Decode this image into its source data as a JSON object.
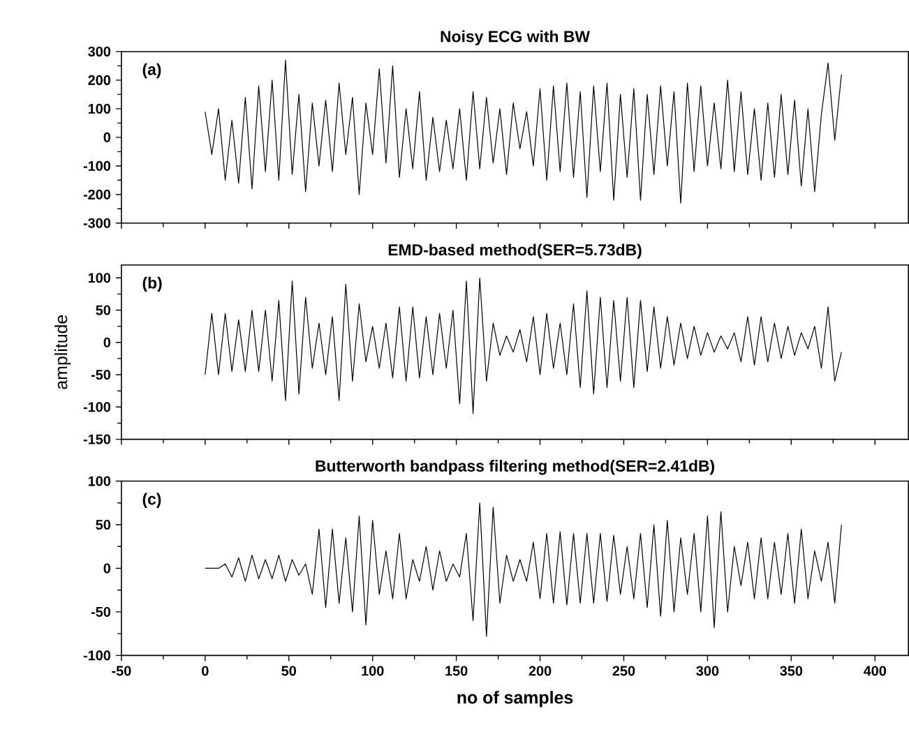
{
  "chart_data": [
    {
      "type": "line",
      "title": "Noisy ECG with BW",
      "annotations": [
        "(a)"
      ],
      "color": "#000000",
      "tick_labels": "y",
      "xlim": [
        -50,
        420
      ],
      "ylim": [
        -300,
        300
      ],
      "xticks": [
        -50,
        0,
        50,
        100,
        150,
        200,
        250,
        300,
        350,
        400
      ],
      "yticks": [
        -300,
        -200,
        -100,
        0,
        100,
        200,
        300
      ],
      "x": [
        0,
        4,
        8,
        12,
        16,
        20,
        24,
        28,
        32,
        36,
        40,
        44,
        48,
        52,
        56,
        60,
        64,
        68,
        72,
        76,
        80,
        84,
        88,
        92,
        96,
        100,
        104,
        108,
        112,
        116,
        120,
        124,
        128,
        132,
        136,
        140,
        144,
        148,
        152,
        156,
        160,
        164,
        168,
        172,
        176,
        180,
        184,
        188,
        192,
        196,
        200,
        204,
        208,
        212,
        216,
        220,
        224,
        228,
        232,
        236,
        240,
        244,
        248,
        252,
        256,
        260,
        264,
        268,
        272,
        276,
        280,
        284,
        288,
        292,
        296,
        300,
        304,
        308,
        312,
        316,
        320,
        324,
        328,
        332,
        336,
        340,
        344,
        348,
        352,
        356,
        360,
        364,
        368,
        372,
        376,
        380
      ],
      "values": [
        90,
        -60,
        100,
        -150,
        60,
        -160,
        140,
        -180,
        180,
        -120,
        200,
        -150,
        270,
        -130,
        150,
        -190,
        120,
        -100,
        130,
        -120,
        190,
        -60,
        140,
        -200,
        120,
        -60,
        240,
        -90,
        250,
        -140,
        100,
        -110,
        160,
        -150,
        70,
        -120,
        60,
        -110,
        100,
        -150,
        160,
        -110,
        140,
        -90,
        100,
        -130,
        120,
        -40,
        90,
        -100,
        170,
        -150,
        180,
        -120,
        190,
        -140,
        160,
        -210,
        180,
        -120,
        190,
        -220,
        150,
        -140,
        170,
        -220,
        150,
        -130,
        180,
        -100,
        160,
        -230,
        190,
        -120,
        180,
        -100,
        120,
        -110,
        200,
        -120,
        160,
        -130,
        100,
        -150,
        120,
        -140,
        150,
        -130,
        130,
        -170,
        100,
        -190,
        80,
        260,
        -10,
        220
      ]
    },
    {
      "type": "line",
      "title": "EMD-based method(SER=5.73dB)",
      "ylabel": "amplitude",
      "annotations": [
        "(b)"
      ],
      "color": "#000000",
      "tick_labels": "y",
      "xlim": [
        -50,
        420
      ],
      "ylim": [
        -150,
        120
      ],
      "xticks": [
        -50,
        0,
        50,
        100,
        150,
        200,
        250,
        300,
        350,
        400
      ],
      "yticks": [
        -150,
        -100,
        -50,
        0,
        50,
        100
      ],
      "x": [
        0,
        4,
        8,
        12,
        16,
        20,
        24,
        28,
        32,
        36,
        40,
        44,
        48,
        52,
        56,
        60,
        64,
        68,
        72,
        76,
        80,
        84,
        88,
        92,
        96,
        100,
        104,
        108,
        112,
        116,
        120,
        124,
        128,
        132,
        136,
        140,
        144,
        148,
        152,
        156,
        160,
        164,
        168,
        172,
        176,
        180,
        184,
        188,
        192,
        196,
        200,
        204,
        208,
        212,
        216,
        220,
        224,
        228,
        232,
        236,
        240,
        244,
        248,
        252,
        256,
        260,
        264,
        268,
        272,
        276,
        280,
        284,
        288,
        292,
        296,
        300,
        304,
        308,
        312,
        316,
        320,
        324,
        328,
        332,
        336,
        340,
        344,
        348,
        352,
        356,
        360,
        364,
        368,
        372,
        376,
        380
      ],
      "values": [
        -50,
        45,
        -50,
        45,
        -45,
        35,
        -45,
        50,
        -45,
        50,
        -60,
        65,
        -90,
        95,
        -80,
        70,
        -40,
        30,
        -50,
        40,
        -90,
        90,
        -60,
        60,
        -30,
        25,
        -40,
        30,
        -55,
        55,
        -60,
        55,
        -55,
        40,
        -50,
        45,
        -40,
        50,
        -95,
        95,
        -110,
        100,
        -60,
        30,
        -20,
        10,
        -15,
        20,
        -30,
        40,
        -50,
        45,
        -40,
        30,
        -50,
        60,
        -70,
        80,
        -80,
        70,
        -70,
        65,
        -60,
        70,
        -70,
        65,
        -45,
        55,
        -40,
        40,
        -35,
        30,
        -25,
        25,
        -20,
        15,
        -15,
        10,
        -10,
        15,
        -30,
        40,
        -35,
        40,
        -30,
        30,
        -25,
        25,
        -20,
        15,
        -10,
        25,
        -40,
        55,
        -60,
        -15
      ]
    },
    {
      "type": "line",
      "title": "Butterworth bandpass filtering method(SER=2.41dB)",
      "xlabel": "no of samples",
      "annotations": [
        "(c)"
      ],
      "color": "#000000",
      "xlim": [
        -50,
        420
      ],
      "ylim": [
        -100,
        100
      ],
      "xticks": [
        -50,
        0,
        50,
        100,
        150,
        200,
        250,
        300,
        350,
        400
      ],
      "yticks": [
        -100,
        -50,
        0,
        50,
        100
      ],
      "x": [
        0,
        4,
        8,
        12,
        16,
        20,
        24,
        28,
        32,
        36,
        40,
        44,
        48,
        52,
        56,
        60,
        64,
        68,
        72,
        76,
        80,
        84,
        88,
        92,
        96,
        100,
        104,
        108,
        112,
        116,
        120,
        124,
        128,
        132,
        136,
        140,
        144,
        148,
        152,
        156,
        160,
        164,
        168,
        172,
        176,
        180,
        184,
        188,
        192,
        196,
        200,
        204,
        208,
        212,
        216,
        220,
        224,
        228,
        232,
        236,
        240,
        244,
        248,
        252,
        256,
        260,
        264,
        268,
        272,
        276,
        280,
        284,
        288,
        292,
        296,
        300,
        304,
        308,
        312,
        316,
        320,
        324,
        328,
        332,
        336,
        340,
        344,
        348,
        352,
        356,
        360,
        364,
        368,
        372,
        376,
        380
      ],
      "values": [
        0,
        0,
        0,
        5,
        -10,
        12,
        -15,
        15,
        -12,
        10,
        -12,
        15,
        -15,
        10,
        -8,
        5,
        -30,
        45,
        -45,
        45,
        -40,
        35,
        -50,
        60,
        -65,
        55,
        -30,
        20,
        -35,
        40,
        -35,
        10,
        -15,
        25,
        -25,
        20,
        -15,
        5,
        -10,
        40,
        -60,
        75,
        -78,
        70,
        -40,
        15,
        -15,
        10,
        -15,
        30,
        -35,
        40,
        -40,
        42,
        -42,
        40,
        -40,
        40,
        -40,
        40,
        -38,
        38,
        -30,
        25,
        -35,
        40,
        -45,
        50,
        -55,
        55,
        -50,
        35,
        -30,
        40,
        -50,
        60,
        -68,
        65,
        -50,
        25,
        -20,
        30,
        -35,
        35,
        -35,
        30,
        -30,
        40,
        -40,
        45,
        -35,
        20,
        -15,
        30,
        -40,
        50
      ]
    }
  ]
}
